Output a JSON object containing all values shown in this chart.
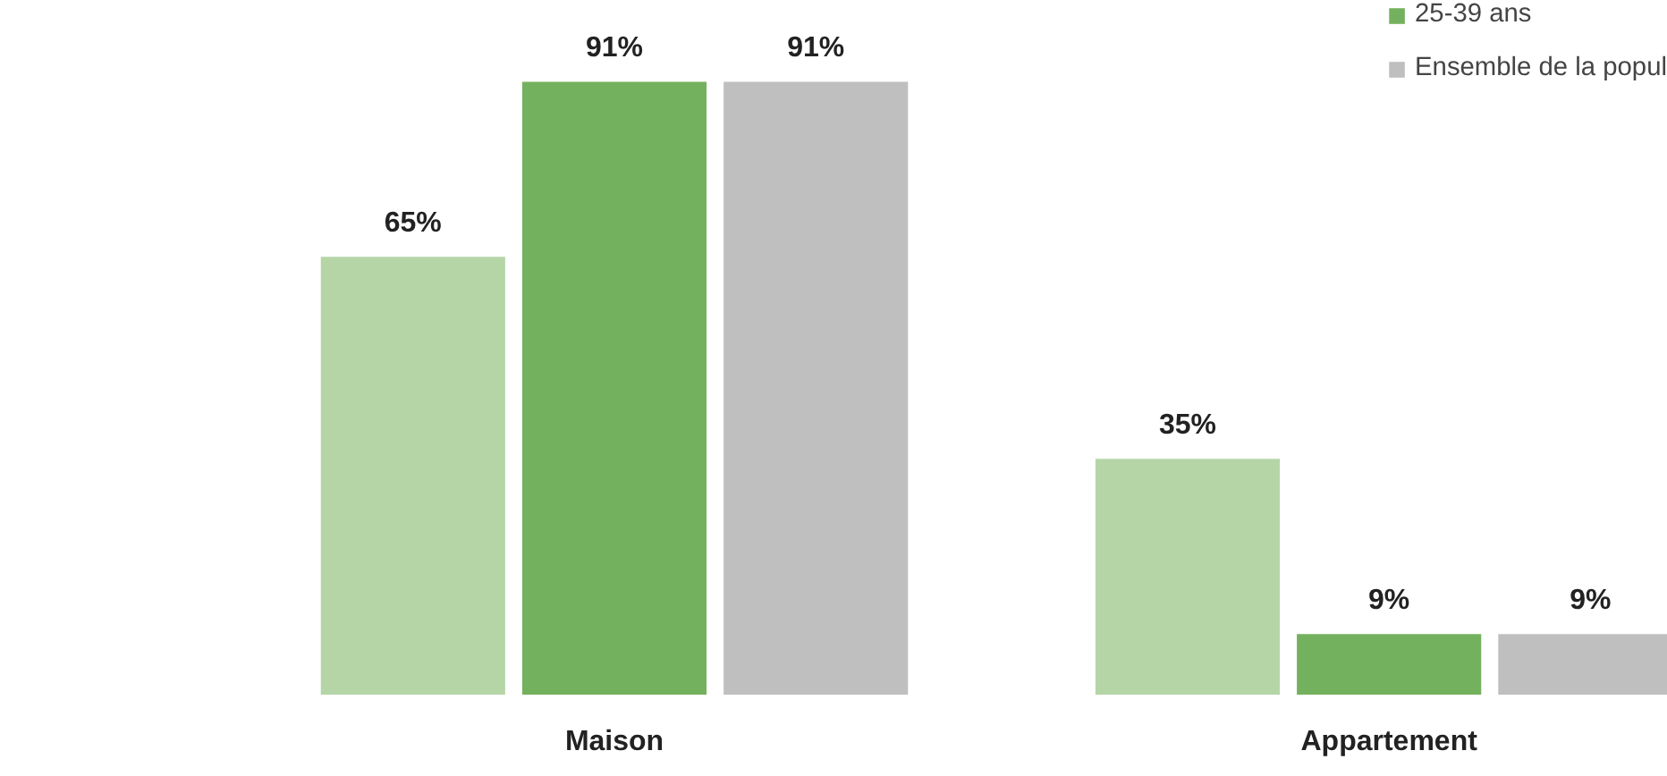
{
  "chart_data": {
    "type": "bar",
    "categories": [
      "Maison",
      "Appartement"
    ],
    "series": [
      {
        "color": "#b5d5a7",
        "values": [
          65,
          35
        ],
        "value_labels": [
          "65%",
          "35%"
        ]
      },
      {
        "name": "25-39 ans",
        "color": "#74b15e",
        "values": [
          91,
          9
        ],
        "value_labels": [
          "91%",
          "9%"
        ]
      },
      {
        "name": "Ensemble de la popul",
        "color": "#bfbfbf",
        "values": [
          91,
          9
        ],
        "value_labels": [
          "91%",
          "9%"
        ]
      }
    ],
    "legend": "top right",
    "grid": false
  }
}
